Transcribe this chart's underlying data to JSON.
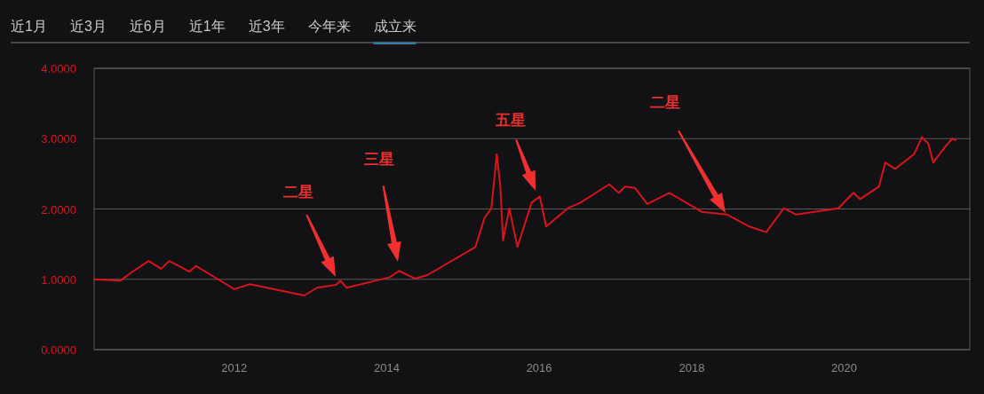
{
  "chart_data": {
    "type": "line",
    "grid": "y",
    "marker": "none",
    "line_style": "solid",
    "x": [
      "2010-03-01",
      "2010-07-04",
      "2010-09-02",
      "2010-11-17",
      "2011-01-16",
      "2011-02-24",
      "2011-06-01",
      "2011-07-01",
      "2011-10-16",
      "2012-01-01",
      "2012-03-16",
      "2012-12-02",
      "2013-02-01",
      "2013-05-03",
      "2013-05-24",
      "2013-06-23",
      "2014-01-15",
      "2014-03-01",
      "2014-05-16",
      "2014-07-15",
      "2015-03-02",
      "2015-04-14",
      "2015-05-17",
      "2015-06-12",
      "2015-06-29",
      "2015-07-12",
      "2015-08-11",
      "2015-09-19",
      "2015-11-26",
      "2016-01-04",
      "2016-02-03",
      "2016-05-18",
      "2016-07-17",
      "2016-12-01",
      "2017-01-17",
      "2017-02-16",
      "2017-04-03",
      "2017-06-02",
      "2017-09-16",
      "2018-02-17",
      "2018-06-19",
      "2018-10-04",
      "2018-12-24",
      "2019-03-18",
      "2019-05-16",
      "2019-12-04",
      "2020-02-15",
      "2020-03-18",
      "2020-06-16",
      "2020-07-16",
      "2020-09-02",
      "2020-12-01",
      "2021-01-08",
      "2021-02-07",
      "2021-03-03",
      "2021-05-01",
      "2021-06-01",
      "2021-06-18"
    ],
    "series": [
      {
        "color": "#d7141a",
        "values": [
          1.0,
          0.98,
          1.11,
          1.26,
          1.15,
          1.26,
          1.11,
          1.19,
          1.0,
          0.86,
          0.93,
          0.77,
          0.88,
          0.92,
          0.98,
          0.88,
          1.03,
          1.12,
          1.01,
          1.06,
          1.46,
          1.87,
          2.01,
          2.78,
          2.32,
          1.55,
          2.01,
          1.46,
          2.09,
          2.18,
          1.75,
          2.01,
          2.09,
          2.35,
          2.23,
          2.32,
          2.3,
          2.07,
          2.23,
          1.96,
          1.92,
          1.75,
          1.67,
          2.01,
          1.92,
          2.01,
          2.23,
          2.14,
          2.32,
          2.66,
          2.57,
          2.78,
          3.02,
          2.93,
          2.66,
          2.89,
          3.0,
          2.98
        ]
      }
    ],
    "xlim": [
      "2010-03-01",
      "2021-08-25"
    ],
    "xticks": [
      {
        "value": "2012-01-01",
        "label": "2012"
      },
      {
        "value": "2014-01-01",
        "label": "2014"
      },
      {
        "value": "2016-01-01",
        "label": "2016"
      },
      {
        "value": "2018-01-01",
        "label": "2018"
      },
      {
        "value": "2020-01-01",
        "label": "2020"
      }
    ],
    "ylim": [
      0,
      4
    ],
    "yticks": [
      {
        "value": 0,
        "label": "0.0000"
      },
      {
        "value": 1,
        "label": "1.0000"
      },
      {
        "value": 2,
        "label": "2.0000"
      },
      {
        "value": 3,
        "label": "3.0000"
      },
      {
        "value": 4,
        "label": "4.0000"
      }
    ],
    "annotations": [
      "近1月",
      "近3月",
      "近6月",
      "近1年",
      "近3年",
      "今年来",
      "成立来",
      "二星",
      "三星",
      "五星",
      "二星"
    ]
  }
}
